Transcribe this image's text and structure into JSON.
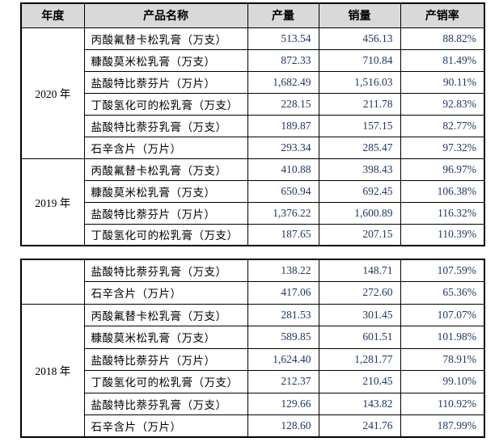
{
  "document": {
    "description": "产销量数据表",
    "colors": {
      "header_bg": "#d9d9d9",
      "border": "#000000",
      "text": "#000000",
      "number_text": "#1f3864",
      "page_bg": "#ffffff"
    },
    "headers": [
      "年度",
      "产品名称",
      "产量",
      "销量",
      "产销率"
    ],
    "tables": [
      {
        "id": "table1",
        "has_header": true,
        "groups": [
          {
            "year": "2020 年",
            "rows": [
              {
                "product": "丙酸氟替卡松乳膏（万支）",
                "production": "513.54",
                "sales": "456.13",
                "ratio": "88.82%"
              },
              {
                "product": "糠酸莫米松乳膏（万支）",
                "production": "872.33",
                "sales": "710.84",
                "ratio": "81.49%"
              },
              {
                "product": "盐酸特比萘芬片（万片）",
                "production": "1,682.49",
                "sales": "1,516.03",
                "ratio": "90.11%"
              },
              {
                "product": "丁酸氢化可的松乳膏（万支）",
                "production": "228.15",
                "sales": "211.78",
                "ratio": "92.83%"
              },
              {
                "product": "盐酸特比萘芬乳膏（万支）",
                "production": "189.87",
                "sales": "157.15",
                "ratio": "82.77%"
              },
              {
                "product": "石辛含片（万片）",
                "production": "293.34",
                "sales": "285.47",
                "ratio": "97.32%"
              }
            ]
          },
          {
            "year": "2019 年",
            "rows": [
              {
                "product": "丙酸氟替卡松乳膏（万支）",
                "production": "410.88",
                "sales": "398.43",
                "ratio": "96.97%"
              },
              {
                "product": "糠酸莫米松乳膏（万支）",
                "production": "650.94",
                "sales": "692.45",
                "ratio": "106.38%"
              },
              {
                "product": "盐酸特比萘芬片（万片）",
                "production": "1,376.22",
                "sales": "1,600.89",
                "ratio": "116.32%"
              },
              {
                "product": "丁酸氢化可的松乳膏（万支）",
                "production": "187.65",
                "sales": "207.15",
                "ratio": "110.39%"
              }
            ]
          }
        ]
      },
      {
        "id": "table2",
        "has_header": false,
        "groups": [
          {
            "year": "",
            "rows": [
              {
                "product": "盐酸特比萘芬乳膏（万支）",
                "production": "138.22",
                "sales": "148.71",
                "ratio": "107.59%"
              },
              {
                "product": "石辛含片（万片）",
                "production": "417.06",
                "sales": "272.60",
                "ratio": "65.36%"
              }
            ]
          },
          {
            "year": "2018 年",
            "rows": [
              {
                "product": "丙酸氟替卡松乳膏（万支）",
                "production": "281.53",
                "sales": "301.45",
                "ratio": "107.07%"
              },
              {
                "product": "糠酸莫米松乳膏（万支）",
                "production": "589.85",
                "sales": "601.51",
                "ratio": "101.98%"
              },
              {
                "product": "盐酸特比萘芬片（万片）",
                "production": "1,624.40",
                "sales": "1,281.77",
                "ratio": "78.91%"
              },
              {
                "product": "丁酸氢化可的松乳膏（万支）",
                "production": "212.37",
                "sales": "210.45",
                "ratio": "99.10%"
              },
              {
                "product": "盐酸特比萘芬乳膏（万支）",
                "production": "129.66",
                "sales": "143.82",
                "ratio": "110.92%"
              },
              {
                "product": "石辛含片（万片）",
                "production": "128.60",
                "sales": "241.76",
                "ratio": "187.99%"
              }
            ]
          }
        ]
      }
    ]
  }
}
